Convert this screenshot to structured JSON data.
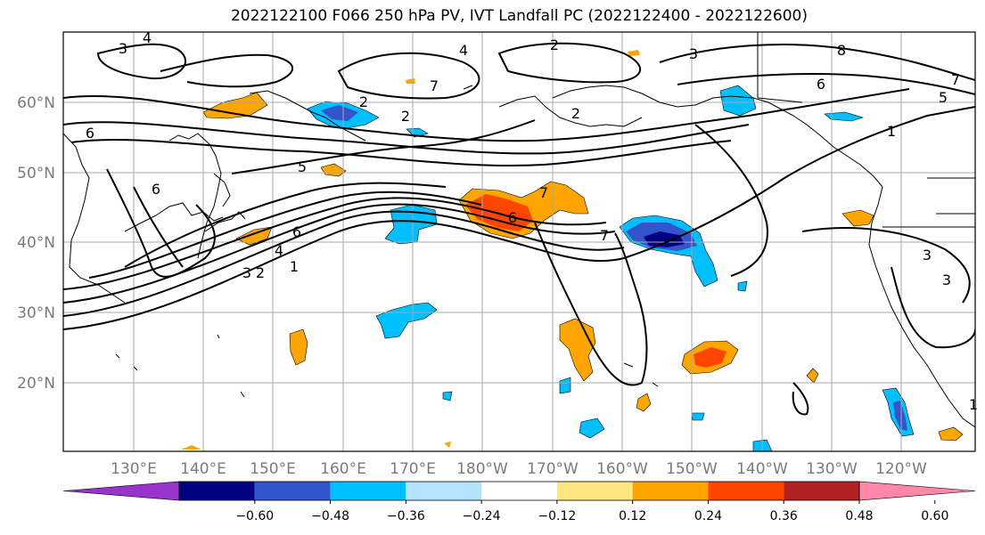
{
  "title": "2022122100 F066 250 hPa PV, IVT Landfall PC (2022122400 - 2022122600)",
  "lat_labels": [
    "60°N",
    "50°N",
    "40°N",
    "30°N",
    "20°N"
  ],
  "lon_labels": [
    "130°E",
    "140°E",
    "150°E",
    "160°E",
    "170°E",
    "180°W",
    "170°W",
    "160°W",
    "150°W",
    "140°W",
    "130°W",
    "120°W"
  ],
  "colorbar": {
    "colors": [
      "#9933cc",
      "#000080",
      "#3355cc",
      "#00bfff",
      "#b3e3ff",
      "#ffffff",
      "#ffe680",
      "#ffa500",
      "#ff4500",
      "#b22222",
      "#ff88aa"
    ],
    "tick_labels": [
      "-0.60",
      "-0.48",
      "-0.36",
      "-0.24",
      "-0.12",
      "0.12",
      "0.24",
      "0.36",
      "0.48",
      "0.60"
    ]
  },
  "contour_labels": [
    "4",
    "3",
    "2",
    "2",
    "4",
    "3",
    "8",
    "6",
    "5",
    "1",
    "6",
    "2",
    "2",
    "5",
    "6",
    "7",
    "6",
    "7",
    "6",
    "4",
    "3",
    "2",
    "1",
    "7",
    "3",
    "3",
    "1",
    "7"
  ]
}
